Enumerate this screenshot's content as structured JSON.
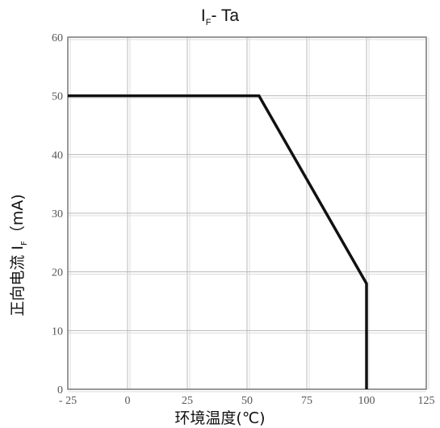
{
  "chart_data": {
    "type": "line",
    "title": "I",
    "title_subscript": "F",
    "title_suffix": "- Ta",
    "ylabel": "正向电流 I",
    "ylabel_subscript": "F",
    "ylabel_suffix": "（mA)",
    "xlabel": "环境温度(℃)",
    "xlim": [
      -25,
      125
    ],
    "ylim": [
      0,
      60
    ],
    "x_ticks": [
      "- 25",
      "0",
      "25",
      "50",
      "75",
      "100",
      "125"
    ],
    "x_tick_values": [
      -25,
      0,
      25,
      50,
      75,
      100,
      125
    ],
    "y_ticks": [
      "0",
      "10",
      "20",
      "30",
      "40",
      "50",
      "60"
    ],
    "y_tick_values": [
      0,
      10,
      20,
      30,
      40,
      50,
      60
    ],
    "grid": true,
    "series": [
      {
        "x": [
          -25,
          55,
          100,
          100
        ],
        "y": [
          50,
          50,
          18,
          0
        ]
      }
    ],
    "colors": {
      "line": "#111111",
      "grid": "#b8b8b8",
      "frame": "#777777"
    }
  }
}
